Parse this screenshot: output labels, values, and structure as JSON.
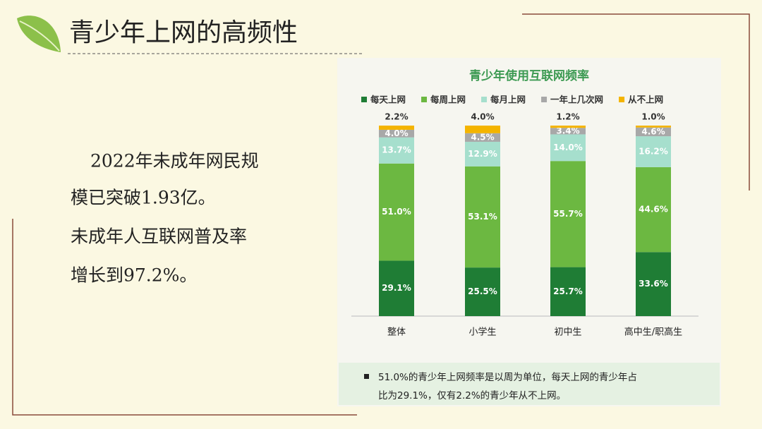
{
  "slide": {
    "title": "青少年上网的高频性",
    "body": [
      "2022年未成年网民规",
      "模已突破1.93亿。",
      "未成年人互联网普及率",
      "增长到97.2%。"
    ]
  },
  "chart_data": {
    "type": "stacked_bar",
    "title": "青少年使用互联网频率",
    "categories": [
      "整体",
      "小学生",
      "初中生",
      "高中生/职高生"
    ],
    "series": [
      {
        "name": "每天上网",
        "color": "#1f7d35",
        "values": [
          29.1,
          25.5,
          25.7,
          33.6
        ],
        "value_labels": [
          "29.1%",
          "25.5%",
          "25.7%",
          "33.6%"
        ]
      },
      {
        "name": "每周上网",
        "color": "#6cb841",
        "values": [
          51.0,
          53.1,
          55.7,
          44.6
        ],
        "value_labels": [
          "51.0%",
          "53.1%",
          "55.7%",
          "44.6%"
        ]
      },
      {
        "name": "每月上网",
        "color": "#a6dfcd",
        "values": [
          13.7,
          12.9,
          14.0,
          16.2
        ],
        "value_labels": [
          "13.7%",
          "12.9%",
          "14.0%",
          "16.2%"
        ]
      },
      {
        "name": "一年上几次网",
        "color": "#a8a8a8",
        "values": [
          4.0,
          4.5,
          3.4,
          4.6
        ],
        "value_labels": [
          "4.0%",
          "4.5%",
          "3.4%",
          "4.6%"
        ]
      },
      {
        "name": "从不上网",
        "color": "#f4b400",
        "values": [
          2.2,
          4.0,
          1.2,
          1.0
        ],
        "value_labels": [
          "2.2%",
          "4.0%",
          "1.2%",
          "1.0%"
        ]
      }
    ],
    "note": [
      "51.0%的青少年上网频率是以周为单位，每天上网的青少年占",
      "比为29.1%，仅有2.2%的青少年从不上网。"
    ]
  }
}
